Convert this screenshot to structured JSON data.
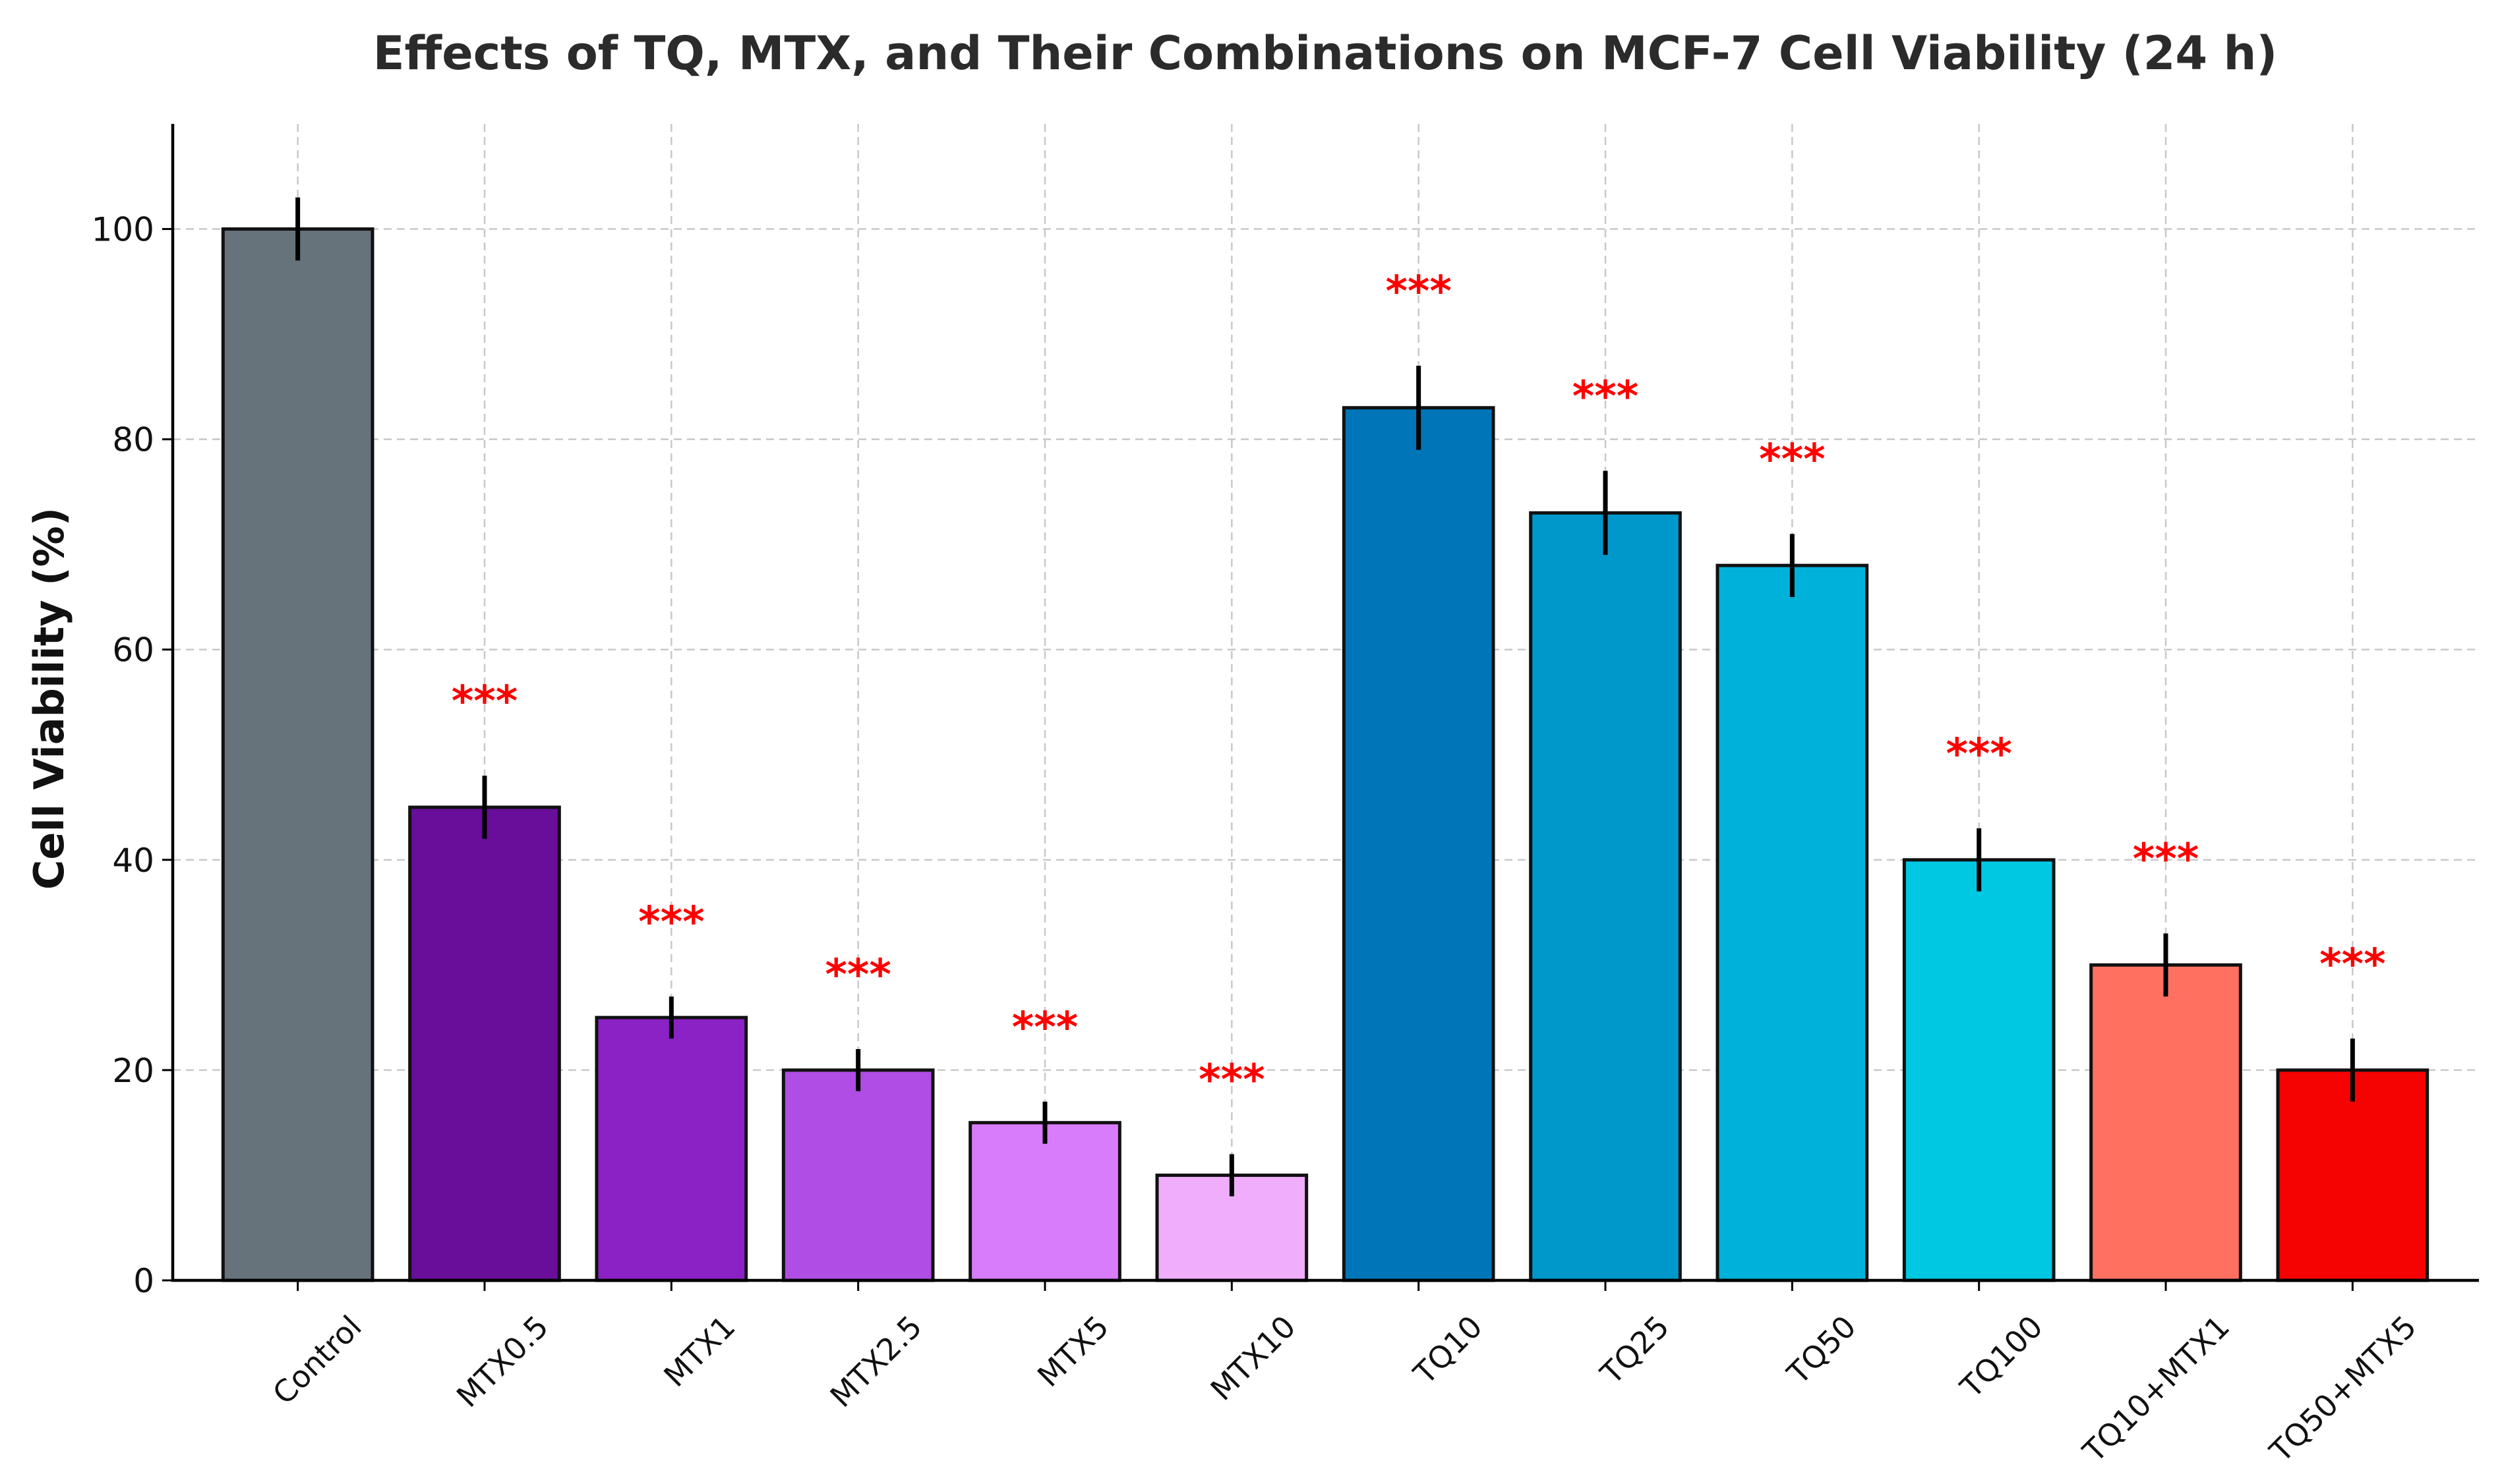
{
  "chart_data": {
    "type": "bar",
    "title": "Effects of TQ, MTX, and Their Combinations on MCF-7 Cell Viability (24 h)",
    "xlabel": "",
    "ylabel": "Cell Viability (%)",
    "ylim": [
      0,
      110
    ],
    "yticks": [
      0,
      20,
      40,
      60,
      80,
      100
    ],
    "grid": true,
    "categories": [
      "Control",
      "MTX0.5",
      "MTX1",
      "MTX2.5",
      "MTX5",
      "MTX10",
      "TQ10",
      "TQ25",
      "TQ50",
      "TQ100",
      "TQ10+MTX1",
      "TQ50+MTX5"
    ],
    "values": [
      100,
      45,
      25,
      20,
      15,
      10,
      83,
      73,
      68,
      40,
      30,
      20
    ],
    "errors": [
      3,
      3,
      2,
      2,
      2,
      2,
      4,
      4,
      3,
      3,
      3,
      3
    ],
    "significance": [
      "",
      "***",
      "***",
      "***",
      "***",
      "***",
      "***",
      "***",
      "***",
      "***",
      "***",
      "***"
    ],
    "colors": [
      "#66737b",
      "#680e9a",
      "#8b22c5",
      "#b04de4",
      "#d97cfb",
      "#f0adfb",
      "#0076b8",
      "#0097cb",
      "#00b2d9",
      "#00c8e3",
      "#ff7060",
      "#f50202"
    ]
  }
}
